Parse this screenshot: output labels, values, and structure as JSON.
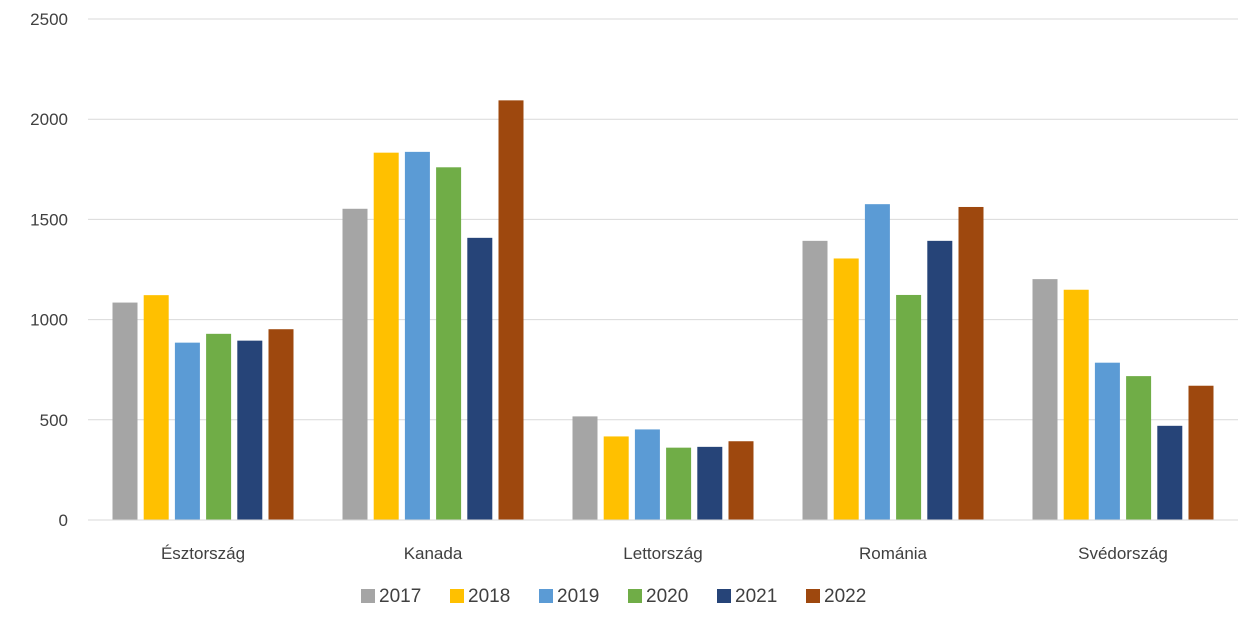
{
  "chart_data": {
    "type": "bar",
    "title": "",
    "xlabel": "",
    "ylabel": "",
    "categories": [
      "Észtország",
      "Kanada",
      "Lettország",
      "Románia",
      "Svédország"
    ],
    "ylim": [
      0,
      2500
    ],
    "yticks": [
      0,
      500,
      1000,
      1500,
      2000,
      2500
    ],
    "grid": true,
    "legend_position": "bottom",
    "series": [
      {
        "name": "2017",
        "color": "#a5a5a5",
        "values": [
          1085,
          1553,
          517,
          1393,
          1202
        ]
      },
      {
        "name": "2018",
        "color": "#ffc000",
        "values": [
          1122,
          1833,
          417,
          1305,
          1149
        ]
      },
      {
        "name": "2019",
        "color": "#5b9bd5",
        "values": [
          885,
          1837,
          452,
          1576,
          785
        ]
      },
      {
        "name": "2020",
        "color": "#70ad47",
        "values": [
          929,
          1760,
          361,
          1123,
          718
        ]
      },
      {
        "name": "2021",
        "color": "#264478",
        "values": [
          895,
          1408,
          365,
          1393,
          470
        ]
      },
      {
        "name": "2022",
        "color": "#9e480e",
        "values": [
          952,
          2094,
          393,
          1562,
          670
        ]
      }
    ]
  }
}
